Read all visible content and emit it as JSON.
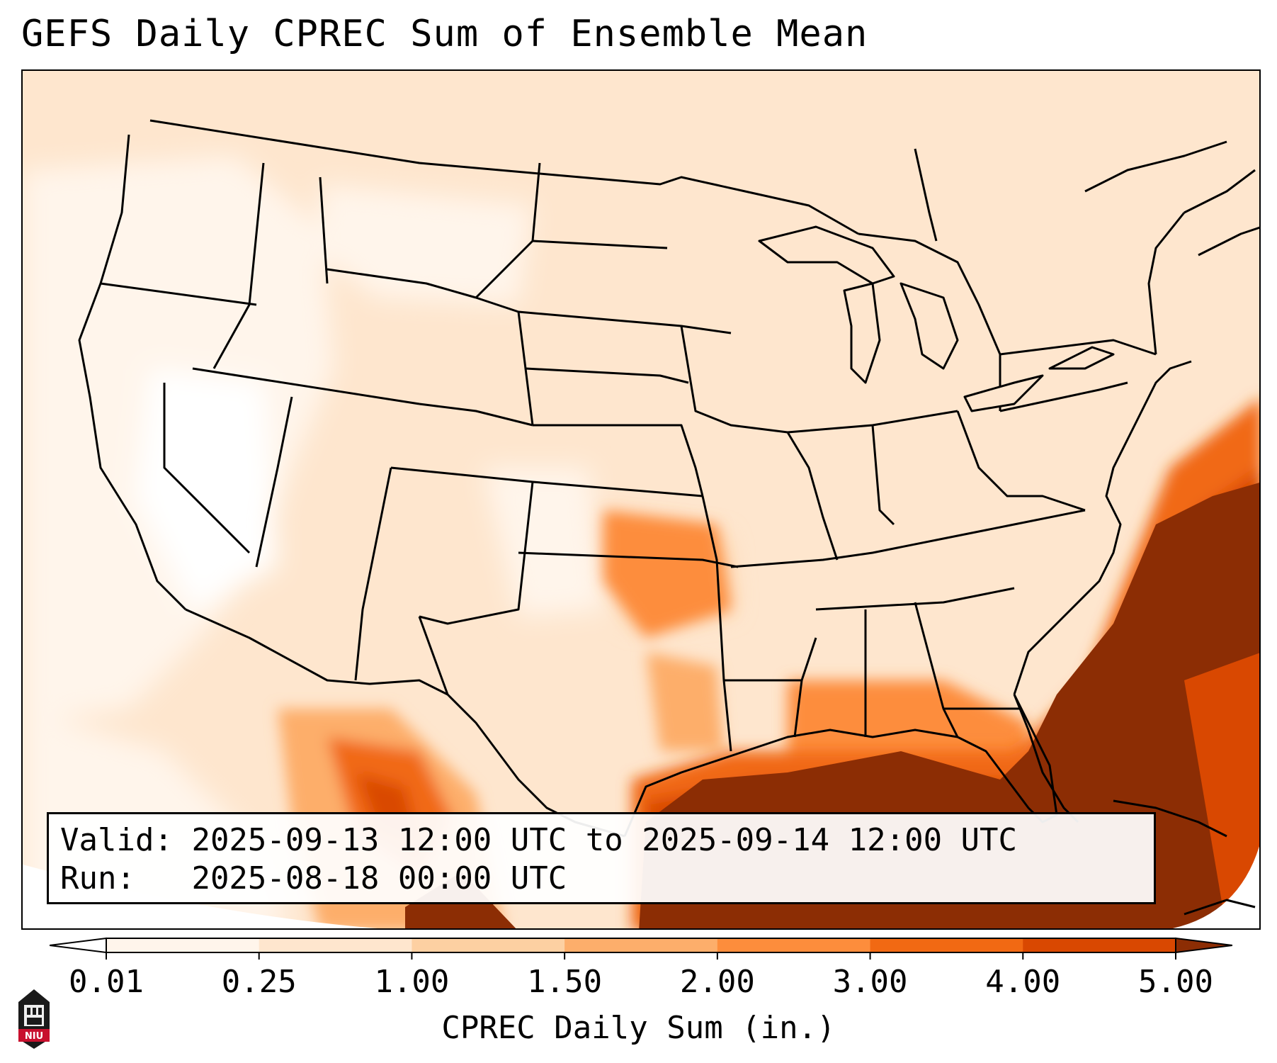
{
  "title": "GEFS Daily CPREC Sum of Ensemble Mean",
  "info": {
    "valid_label": "Valid:",
    "valid_value": "2025-09-13 12:00 UTC to 2025-09-14 12:00 UTC",
    "run_label": "Run:",
    "run_value": "2025-08-18 00:00 UTC"
  },
  "colorbar": {
    "label": "CPREC Daily Sum (in.)",
    "ticks": [
      "0.01",
      "0.25",
      "1.00",
      "1.50",
      "2.00",
      "3.00",
      "4.00",
      "5.00"
    ],
    "bins": [
      "#fff5eb",
      "#fee6ce",
      "#fdd0a2",
      "#fdae6b",
      "#fd8d3c",
      "#f16913",
      "#d94801",
      "#8c2d04"
    ],
    "extend_low_color": "#ffffff",
    "extend_high_color": "#8c2d04"
  },
  "logo": {
    "text": "NIU",
    "color": "#c8102e"
  },
  "map": {
    "region": "Continental United States",
    "outline_color": "#000000"
  }
}
